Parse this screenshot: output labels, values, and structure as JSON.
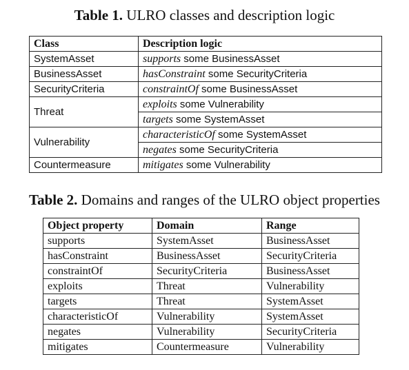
{
  "table1": {
    "caption_label": "Table 1.",
    "caption_text": "ULRO classes and description logic",
    "header": [
      "Class",
      "Description logic"
    ],
    "rows": [
      {
        "class": "SystemAsset",
        "logic": [
          {
            "prop": "supports",
            "rest": " some BusinessAsset"
          }
        ]
      },
      {
        "class": "BusinessAsset",
        "logic": [
          {
            "prop": "hasConstraint",
            "rest": " some SecurityCriteria"
          }
        ]
      },
      {
        "class": "SecurityCriteria",
        "logic": [
          {
            "prop": "constraintOf",
            "rest": " some BusinessAsset"
          }
        ]
      },
      {
        "class": "Threat",
        "logic": [
          {
            "prop": "exploits",
            "rest": " some Vulnerability"
          },
          {
            "prop": "targets",
            "rest": " some SystemAsset"
          }
        ]
      },
      {
        "class": "Vulnerability",
        "logic": [
          {
            "prop": "characteristicOf",
            "rest": " some SystemAsset"
          },
          {
            "prop": "negates",
            "rest": " some SecurityCriteria"
          }
        ]
      },
      {
        "class": "Countermeasure",
        "logic": [
          {
            "prop": "mitigates",
            "rest": " some Vulnerability"
          }
        ]
      }
    ]
  },
  "table2": {
    "caption_label": "Table 2.",
    "caption_text": "Domains and ranges of the ULRO object properties",
    "header": [
      "Object property",
      "Domain",
      "Range"
    ],
    "rows": [
      [
        "supports",
        "SystemAsset",
        "BusinessAsset"
      ],
      [
        "hasConstraint",
        "BusinessAsset",
        "SecurityCriteria"
      ],
      [
        "constraintOf",
        "SecurityCriteria",
        "BusinessAsset"
      ],
      [
        "exploits",
        "Threat",
        "Vulnerability"
      ],
      [
        "targets",
        "Threat",
        "SystemAsset"
      ],
      [
        "characteristicOf",
        "Vulnerability",
        "SystemAsset"
      ],
      [
        "negates",
        "Vulnerability",
        "SecurityCriteria"
      ],
      [
        "mitigates",
        "Countermeasure",
        "Vulnerability"
      ]
    ]
  }
}
